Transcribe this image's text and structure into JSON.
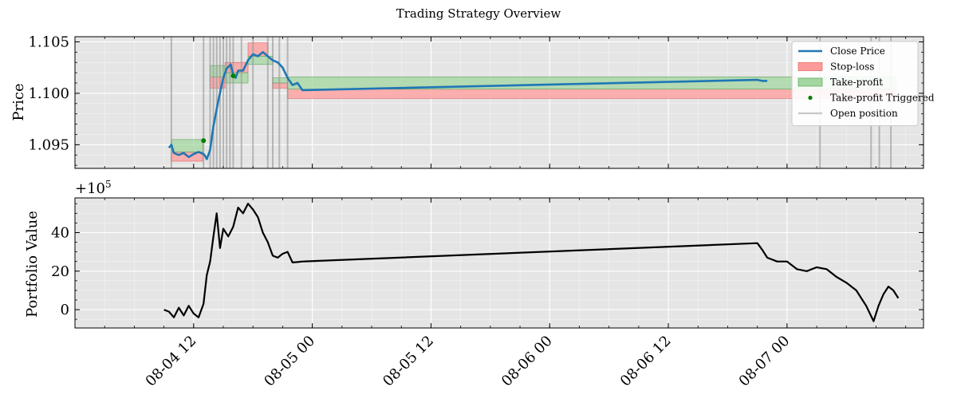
{
  "title": "Trading Strategy Overview",
  "chart_data": [
    {
      "type": "line",
      "panel": "price",
      "ylabel": "Price",
      "ylim": [
        1.0927,
        1.1055
      ],
      "xlim": [
        "2023-08-04 00:00",
        "2023-08-07 13:48"
      ],
      "yticks": [
        1.095,
        1.1,
        1.105
      ],
      "ytick_labels": [
        "1.095",
        "1.100",
        "1.105"
      ],
      "grid": true,
      "legend_position": "top-right",
      "legend": [
        {
          "label": "Close Price",
          "kind": "line",
          "color": "#1f77b4"
        },
        {
          "label": "Stop-loss",
          "kind": "patch",
          "color": "#ff9a9a"
        },
        {
          "label": "Take-profit",
          "kind": "patch",
          "color": "#a3d6a0"
        },
        {
          "label": "Take-profit Triggered",
          "kind": "marker",
          "color": "#008000"
        },
        {
          "label": "Open position",
          "kind": "line",
          "color": "#c8c8c8"
        }
      ],
      "series": [
        {
          "name": "Close Price",
          "color": "#1f77b4",
          "x": [
            "2023-08-04 09:30",
            "2023-08-04 09:45",
            "2023-08-04 10:00",
            "2023-08-04 10:30",
            "2023-08-04 11:00",
            "2023-08-04 11:30",
            "2023-08-04 12:00",
            "2023-08-04 12:30",
            "2023-08-04 13:00",
            "2023-08-04 13:10",
            "2023-08-04 13:20",
            "2023-08-04 13:40",
            "2023-08-04 14:00",
            "2023-08-04 14:30",
            "2023-08-04 15:00",
            "2023-08-04 15:20",
            "2023-08-04 15:45",
            "2023-08-04 16:00",
            "2023-08-04 16:15",
            "2023-08-04 16:30",
            "2023-08-04 17:00",
            "2023-08-04 17:30",
            "2023-08-04 18:00",
            "2023-08-04 18:30",
            "2023-08-04 19:00",
            "2023-08-04 19:30",
            "2023-08-04 20:00",
            "2023-08-04 20:30",
            "2023-08-04 21:00",
            "2023-08-04 21:30",
            "2023-08-04 22:00",
            "2023-08-04 22:30",
            "2023-08-04 23:00",
            "2023-08-06 21:00",
            "2023-08-06 21:30",
            "2023-08-06 22:00"
          ],
          "y": [
            1.0947,
            1.095,
            1.0942,
            1.094,
            1.0942,
            1.0938,
            1.0941,
            1.0943,
            1.0941,
            1.0939,
            1.0936,
            1.0945,
            1.0968,
            1.0993,
            1.1015,
            1.1024,
            1.1028,
            1.1018,
            1.1015,
            1.1022,
            1.1022,
            1.1032,
            1.1038,
            1.1036,
            1.104,
            1.1036,
            1.1032,
            1.103,
            1.1025,
            1.1015,
            1.1008,
            1.101,
            1.1003,
            1.1013,
            1.1012,
            1.1012
          ]
        }
      ],
      "stop_loss_zones": [
        {
          "x_start": "2023-08-04 09:45",
          "x_end": "2023-08-04 12:55",
          "bottom": 1.0934,
          "top": 1.0943
        },
        {
          "x_start": "2023-08-04 13:40",
          "x_end": "2023-08-04 15:10",
          "bottom": 1.1005,
          "top": 1.1016
        },
        {
          "x_start": "2023-08-04 15:10",
          "x_end": "2023-08-04 17:30",
          "bottom": 1.102,
          "top": 1.103
        },
        {
          "x_start": "2023-08-04 17:30",
          "x_end": "2023-08-04 19:30",
          "bottom": 1.1036,
          "top": 1.1049
        },
        {
          "x_start": "2023-08-04 20:00",
          "x_end": "2023-08-04 21:30",
          "bottom": 1.1005,
          "top": 1.101
        },
        {
          "x_start": "2023-08-04 21:30",
          "x_end": "2023-08-07 11:00",
          "bottom": 1.0995,
          "top": 1.1004
        }
      ],
      "take_profit_zones": [
        {
          "x_start": "2023-08-04 09:45",
          "x_end": "2023-08-04 12:55",
          "bottom": 1.0943,
          "top": 1.0955
        },
        {
          "x_start": "2023-08-04 13:40",
          "x_end": "2023-08-04 15:10",
          "bottom": 1.1016,
          "top": 1.1027
        },
        {
          "x_start": "2023-08-04 15:10",
          "x_end": "2023-08-04 17:30",
          "bottom": 1.101,
          "top": 1.102
        },
        {
          "x_start": "2023-08-04 17:30",
          "x_end": "2023-08-04 20:00",
          "bottom": 1.1028,
          "top": 1.1036
        },
        {
          "x_start": "2023-08-04 20:00",
          "x_end": "2023-08-04 21:30",
          "bottom": 1.101,
          "top": 1.1015
        },
        {
          "x_start": "2023-08-04 21:30",
          "x_end": "2023-08-07 11:00",
          "bottom": 1.1004,
          "top": 1.1016
        }
      ],
      "take_profit_triggered": [
        {
          "x": "2023-08-04 13:00",
          "y": 1.0954
        },
        {
          "x": "2023-08-04 16:00",
          "y": 1.1017
        }
      ],
      "open_positions": [
        "2023-08-04 09:45",
        "2023-08-04 13:00",
        "2023-08-04 13:40",
        "2023-08-04 14:00",
        "2023-08-04 14:20",
        "2023-08-04 14:40",
        "2023-08-04 15:00",
        "2023-08-04 15:20",
        "2023-08-04 15:40",
        "2023-08-04 16:00",
        "2023-08-04 16:50",
        "2023-08-04 18:00",
        "2023-08-04 19:30",
        "2023-08-04 20:00",
        "2023-08-04 20:40",
        "2023-08-04 21:30",
        "2023-08-07 03:20",
        "2023-08-07 08:30",
        "2023-08-07 09:20",
        "2023-08-07 10:30"
      ]
    },
    {
      "type": "line",
      "panel": "portfolio",
      "ylabel": "Portfolio Value",
      "offset_label": "+10^5",
      "offset_base": "+10",
      "offset_exp": "5",
      "ylim": [
        -9.5,
        58
      ],
      "yticks": [
        0,
        20,
        40
      ],
      "ytick_labels": [
        "0",
        "20",
        "40"
      ],
      "grid": true,
      "series": [
        {
          "name": "",
          "color": "#000000",
          "x": [
            "2023-08-04 09:00",
            "2023-08-04 09:30",
            "2023-08-04 10:00",
            "2023-08-04 10:30",
            "2023-08-04 11:00",
            "2023-08-04 11:30",
            "2023-08-04 12:00",
            "2023-08-04 12:30",
            "2023-08-04 13:00",
            "2023-08-04 13:20",
            "2023-08-04 13:40",
            "2023-08-04 14:00",
            "2023-08-04 14:20",
            "2023-08-04 14:40",
            "2023-08-04 15:00",
            "2023-08-04 15:30",
            "2023-08-04 16:00",
            "2023-08-04 16:30",
            "2023-08-04 17:00",
            "2023-08-04 17:30",
            "2023-08-04 18:00",
            "2023-08-04 18:30",
            "2023-08-04 19:00",
            "2023-08-04 19:30",
            "2023-08-04 20:00",
            "2023-08-04 20:30",
            "2023-08-04 21:00",
            "2023-08-04 21:30",
            "2023-08-04 22:00",
            "2023-08-04 22:30",
            "2023-08-04 23:00",
            "2023-08-06 21:00",
            "2023-08-06 21:30",
            "2023-08-06 22:00",
            "2023-08-06 23:00",
            "2023-08-07 00:00",
            "2023-08-07 01:00",
            "2023-08-07 02:00",
            "2023-08-07 03:00",
            "2023-08-07 04:00",
            "2023-08-07 05:00",
            "2023-08-07 06:00",
            "2023-08-07 07:00",
            "2023-08-07 08:00",
            "2023-08-07 08:45",
            "2023-08-07 09:15",
            "2023-08-07 09:45",
            "2023-08-07 10:15",
            "2023-08-07 10:45",
            "2023-08-07 11:15"
          ],
          "y": [
            0,
            -1,
            -4,
            1,
            -3,
            2,
            -2,
            -4,
            3,
            18,
            25,
            38,
            50,
            32,
            42,
            38,
            43,
            53,
            50,
            55,
            52,
            48,
            40,
            35,
            28,
            27,
            29,
            30,
            24.5,
            24.7,
            25,
            34.5,
            31,
            27,
            25,
            25,
            21,
            20,
            22,
            21,
            17,
            14,
            10,
            2,
            -6,
            2,
            8,
            12,
            10,
            6
          ]
        }
      ]
    }
  ],
  "x_axis": {
    "tick_labels": [
      "08-04 12",
      "08-05 00",
      "08-05 12",
      "08-06 00",
      "08-06 12",
      "08-07 00"
    ],
    "tick_values": [
      "2023-08-04 12:00",
      "2023-08-05 00:00",
      "2023-08-05 12:00",
      "2023-08-06 00:00",
      "2023-08-06 12:00",
      "2023-08-07 00:00"
    ]
  },
  "colors": {
    "plot_background": "#e5e5e5",
    "grid": "#ffffff",
    "close_price": "#1f77b4",
    "stop_loss": "#ff9a9a",
    "take_profit": "#a3d6a0",
    "triggered": "#008000",
    "open_position": "#c0c0c0",
    "portfolio": "#000000"
  }
}
